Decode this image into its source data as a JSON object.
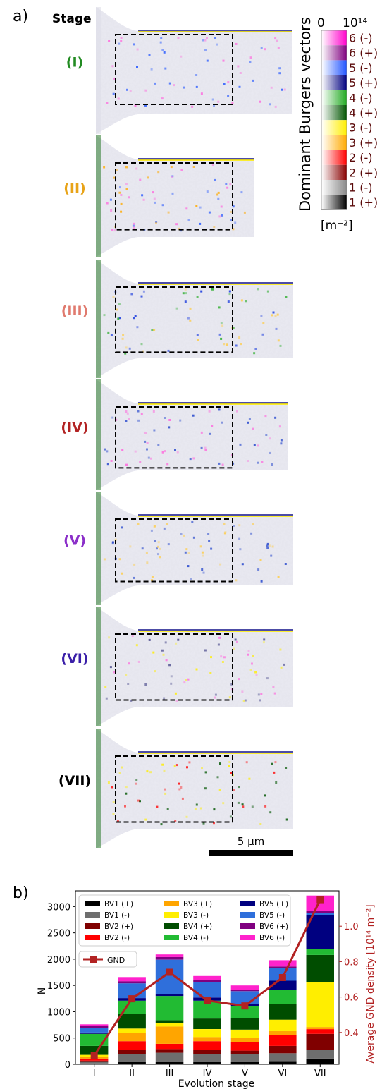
{
  "panel_a": {
    "panel_label": "a)",
    "stage_header": "Stage",
    "stages": [
      {
        "label": "(I)",
        "color": "#228b22"
      },
      {
        "label": "(II)",
        "color": "#e8a317"
      },
      {
        "label": "(III)",
        "color": "#e07a6e"
      },
      {
        "label": "(IV)",
        "color": "#b22222"
      },
      {
        "label": "(V)",
        "color": "#8b2fc9"
      },
      {
        "label": "(VI)",
        "color": "#3a1fa8"
      },
      {
        "label": "(VII)",
        "color": "#000000"
      }
    ],
    "colorbar": {
      "title": "Dominant Burgers vectors",
      "min_label": "0",
      "max_label": "10¹⁴",
      "unit": "[m⁻²]",
      "entries": [
        {
          "label": "6 (-)",
          "color": "#ff00cc"
        },
        {
          "label": "6 (+)",
          "color": "#800080"
        },
        {
          "label": "5 (-)",
          "color": "#2255ff"
        },
        {
          "label": "5 (+)",
          "color": "#000080"
        },
        {
          "label": "4 (-)",
          "color": "#22aa22"
        },
        {
          "label": "4 (+)",
          "color": "#005500"
        },
        {
          "label": "3 (-)",
          "color": "#ffee00"
        },
        {
          "label": "3 (+)",
          "color": "#ffaa00"
        },
        {
          "label": "2 (-)",
          "color": "#ff0000"
        },
        {
          "label": "2 (+)",
          "color": "#880000"
        },
        {
          "label": "1 (-)",
          "color": "#888888"
        },
        {
          "label": "1 (+)",
          "color": "#000000"
        }
      ]
    },
    "scale_bar": "5 µm"
  },
  "chart_data": {
    "type": "bar",
    "panel_label": "b)",
    "stacked": true,
    "categories": [
      "I",
      "II",
      "III",
      "IV",
      "V",
      "VI",
      "VII"
    ],
    "xlabel": "Evolution stage",
    "ylabel": "N",
    "ylabel_right": "Average GND density [10¹⁴ m⁻²]",
    "ylim": [
      0,
      3300
    ],
    "y_ticks": [
      0,
      500,
      1000,
      1500,
      2000,
      2500,
      3000
    ],
    "ylim_right": [
      0.22,
      1.2
    ],
    "y_ticks_right": [
      0.4,
      0.6,
      0.8,
      1.0
    ],
    "legend_position": "top-left",
    "series": [
      {
        "name": "BV1 (+)",
        "color": "#000000",
        "values": [
          15,
          40,
          40,
          40,
          40,
          50,
          110
        ]
      },
      {
        "name": "BV1 (-)",
        "color": "#6e6e6e",
        "values": [
          30,
          160,
          180,
          160,
          150,
          160,
          160
        ]
      },
      {
        "name": "BV2 (+)",
        "color": "#800000",
        "values": [
          25,
          80,
          70,
          80,
          70,
          140,
          310
        ]
      },
      {
        "name": "BV2 (-)",
        "color": "#ff0000",
        "values": [
          40,
          160,
          100,
          160,
          160,
          200,
          90
        ]
      },
      {
        "name": "BV3 (+)",
        "color": "#ffa500",
        "values": [
          25,
          150,
          330,
          80,
          80,
          80,
          40
        ]
      },
      {
        "name": "BV3 (-)",
        "color": "#ffee00",
        "values": [
          45,
          90,
          60,
          150,
          160,
          220,
          850
        ]
      },
      {
        "name": "BV4 (+)",
        "color": "#004d00",
        "values": [
          170,
          280,
          60,
          200,
          220,
          300,
          520
        ]
      },
      {
        "name": "BV4 (-)",
        "color": "#22bb33",
        "values": [
          230,
          250,
          460,
          340,
          230,
          260,
          110
        ]
      },
      {
        "name": "BV5 (+)",
        "color": "#000080",
        "values": [
          25,
          50,
          30,
          60,
          40,
          180,
          640
        ]
      },
      {
        "name": "BV5 (-)",
        "color": "#2f6fdb",
        "values": [
          90,
          280,
          660,
          290,
          240,
          240,
          50
        ]
      },
      {
        "name": "BV6 (+)",
        "color": "#800080",
        "values": [
          30,
          40,
          50,
          40,
          30,
          30,
          40
        ]
      },
      {
        "name": "BV6 (-)",
        "color": "#ff22cc",
        "values": [
          35,
          80,
          50,
          80,
          80,
          120,
          290
        ]
      }
    ],
    "line": {
      "name": "GND",
      "color": "#b22222",
      "values": [
        0.27,
        0.59,
        0.74,
        0.58,
        0.55,
        0.71,
        1.15
      ]
    }
  }
}
